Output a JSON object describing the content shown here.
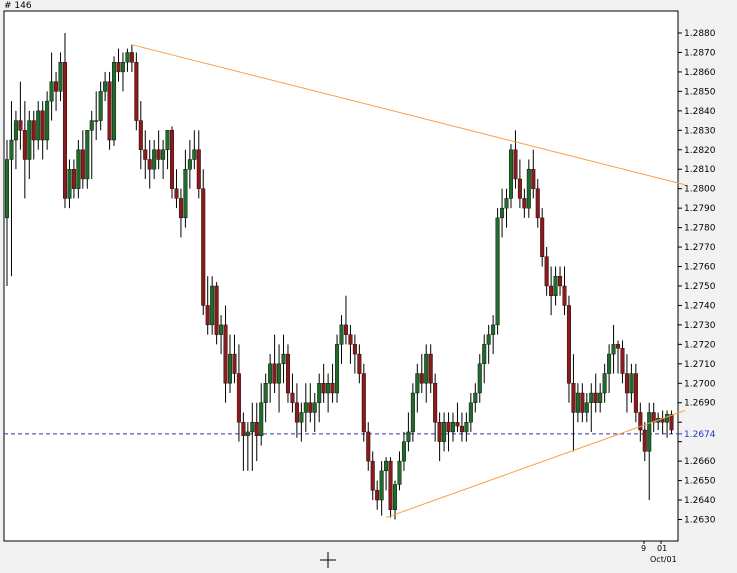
{
  "chart_label": "# 146",
  "chart_data": {
    "type": "candlestick",
    "y_ticks": [
      "1.2880",
      "1.2870",
      "1.2860",
      "1.2850",
      "1.2840",
      "1.2830",
      "1.2820",
      "1.2810",
      "1.2800",
      "1.2790",
      "1.2780",
      "1.2770",
      "1.2760",
      "1.2750",
      "1.2740",
      "1.2730",
      "1.2720",
      "1.2710",
      "1.2700",
      "1.2690",
      "1.2680",
      "1.2670",
      "1.2660",
      "1.2650",
      "1.2640",
      "1.2630"
    ],
    "y_tick_labels_shown": [
      "1.2880",
      "1.2870",
      "1.2860",
      "1.2850",
      "1.2840",
      "1.2830",
      "1.2820",
      "1.2810",
      "1.2800",
      "1.2790",
      "1.2780",
      "1.2770",
      "1.2760",
      "1.2750",
      "1.2740",
      "1.2730",
      "1.2720",
      "1.2710",
      "1.2700",
      "1.2690",
      "1.2660",
      "1.2650",
      "1.2640",
      "1.2630"
    ],
    "ylim": [
      1.2624,
      1.2891
    ],
    "current_price": "1.2674",
    "current_price_value": 1.2674,
    "x_tick_labels": [
      "9",
      "01"
    ],
    "x_date_label": "Oct/01",
    "colors": {
      "bull": "#1e6b2a",
      "bear": "#8b1a1a",
      "wick": "#000000",
      "trendline": "#f5a04a",
      "current_line": "#3333aa",
      "current_label": "#2233cc",
      "plot_bg": "#ffffff",
      "page_bg": "#f2f2f2"
    },
    "trendlines": [
      {
        "from_index": 28,
        "from_price": 1.2874,
        "to_index": 152,
        "to_price": 1.2802
      },
      {
        "from_index": 85,
        "from_price": 1.2631,
        "to_index": 152,
        "to_price": 1.2686
      }
    ],
    "candles": [
      [
        1.2785,
        1.2825,
        1.275,
        1.2815
      ],
      [
        1.2815,
        1.2845,
        1.2755,
        1.2825
      ],
      [
        1.2825,
        1.284,
        1.281,
        1.2835
      ],
      [
        1.2835,
        1.2855,
        1.282,
        1.283
      ],
      [
        1.283,
        1.2845,
        1.2795,
        1.2815
      ],
      [
        1.2815,
        1.284,
        1.2805,
        1.2835
      ],
      [
        1.2835,
        1.284,
        1.2815,
        1.2825
      ],
      [
        1.2825,
        1.2845,
        1.282,
        1.284
      ],
      [
        1.284,
        1.2845,
        1.2815,
        1.2825
      ],
      [
        1.2825,
        1.285,
        1.282,
        1.2845
      ],
      [
        1.2845,
        1.287,
        1.2835,
        1.2855
      ],
      [
        1.2855,
        1.286,
        1.284,
        1.285
      ],
      [
        1.285,
        1.287,
        1.2845,
        1.2865
      ],
      [
        1.2865,
        1.288,
        1.279,
        1.2795
      ],
      [
        1.2795,
        1.2815,
        1.279,
        1.281
      ],
      [
        1.281,
        1.2815,
        1.2795,
        1.28
      ],
      [
        1.28,
        1.2825,
        1.2795,
        1.282
      ],
      [
        1.282,
        1.283,
        1.28,
        1.2805
      ],
      [
        1.2805,
        1.283,
        1.28,
        1.283
      ],
      [
        1.283,
        1.284,
        1.2805,
        1.2835
      ],
      [
        1.2835,
        1.285,
        1.2825,
        1.2835
      ],
      [
        1.2835,
        1.2855,
        1.283,
        1.285
      ],
      [
        1.285,
        1.286,
        1.2845,
        1.2855
      ],
      [
        1.2855,
        1.286,
        1.282,
        1.2825
      ],
      [
        1.2825,
        1.2868,
        1.2822,
        1.2865
      ],
      [
        1.2865,
        1.2872,
        1.2855,
        1.286
      ],
      [
        1.286,
        1.287,
        1.285,
        1.2865
      ],
      [
        1.2865,
        1.2872,
        1.286,
        1.287
      ],
      [
        1.287,
        1.2874,
        1.286,
        1.2865
      ],
      [
        1.2865,
        1.287,
        1.283,
        1.2835
      ],
      [
        1.2835,
        1.2845,
        1.281,
        1.282
      ],
      [
        1.282,
        1.283,
        1.2805,
        1.2815
      ],
      [
        1.2815,
        1.2825,
        1.28,
        1.281
      ],
      [
        1.281,
        1.2825,
        1.2805,
        1.282
      ],
      [
        1.282,
        1.283,
        1.281,
        1.2815
      ],
      [
        1.2815,
        1.2825,
        1.2805,
        1.282
      ],
      [
        1.282,
        1.283,
        1.281,
        1.283
      ],
      [
        1.283,
        1.2832,
        1.2795,
        1.28
      ],
      [
        1.28,
        1.281,
        1.279,
        1.2795
      ],
      [
        1.2795,
        1.28,
        1.2775,
        1.2785
      ],
      [
        1.2785,
        1.282,
        1.278,
        1.281
      ],
      [
        1.281,
        1.2825,
        1.28,
        1.2815
      ],
      [
        1.2815,
        1.283,
        1.281,
        1.282
      ],
      [
        1.282,
        1.283,
        1.2795,
        1.28
      ],
      [
        1.28,
        1.281,
        1.2735,
        1.274
      ],
      [
        1.274,
        1.2755,
        1.2725,
        1.273
      ],
      [
        1.273,
        1.2755,
        1.2725,
        1.275
      ],
      [
        1.275,
        1.2752,
        1.272,
        1.2725
      ],
      [
        1.2725,
        1.2735,
        1.2715,
        1.273
      ],
      [
        1.273,
        1.274,
        1.269,
        1.27
      ],
      [
        1.27,
        1.2725,
        1.2695,
        1.2715
      ],
      [
        1.2715,
        1.2725,
        1.27,
        1.2705
      ],
      [
        1.2705,
        1.272,
        1.267,
        1.268
      ],
      [
        1.268,
        1.2685,
        1.2655,
        1.2673
      ],
      [
        1.2673,
        1.268,
        1.2655,
        1.2675
      ],
      [
        1.2675,
        1.269,
        1.2655,
        1.268
      ],
      [
        1.268,
        1.269,
        1.266,
        1.2673
      ],
      [
        1.2673,
        1.27,
        1.2668,
        1.269
      ],
      [
        1.269,
        1.2705,
        1.268,
        1.27
      ],
      [
        1.27,
        1.2715,
        1.269,
        1.271
      ],
      [
        1.271,
        1.2725,
        1.2695,
        1.27
      ],
      [
        1.27,
        1.272,
        1.2685,
        1.271
      ],
      [
        1.271,
        1.2725,
        1.27,
        1.2715
      ],
      [
        1.2715,
        1.272,
        1.269,
        1.2695
      ],
      [
        1.2695,
        1.2705,
        1.2685,
        1.269
      ],
      [
        1.269,
        1.27,
        1.2672,
        1.268
      ],
      [
        1.268,
        1.269,
        1.267,
        1.2685
      ],
      [
        1.2685,
        1.27,
        1.2675,
        1.269
      ],
      [
        1.269,
        1.27,
        1.268,
        1.2685
      ],
      [
        1.2685,
        1.2695,
        1.2675,
        1.269
      ],
      [
        1.269,
        1.2705,
        1.268,
        1.27
      ],
      [
        1.27,
        1.271,
        1.269,
        1.2695
      ],
      [
        1.2695,
        1.2705,
        1.2685,
        1.27
      ],
      [
        1.27,
        1.271,
        1.269,
        1.2695
      ],
      [
        1.2695,
        1.2725,
        1.269,
        1.272
      ],
      [
        1.272,
        1.2735,
        1.271,
        1.273
      ],
      [
        1.273,
        1.2745,
        1.272,
        1.2725
      ],
      [
        1.2725,
        1.273,
        1.271,
        1.272
      ],
      [
        1.272,
        1.2725,
        1.2705,
        1.2715
      ],
      [
        1.2715,
        1.272,
        1.27,
        1.2705
      ],
      [
        1.2705,
        1.271,
        1.267,
        1.2675
      ],
      [
        1.2675,
        1.268,
        1.2655,
        1.266
      ],
      [
        1.266,
        1.2665,
        1.264,
        1.2645
      ],
      [
        1.2645,
        1.265,
        1.2635,
        1.264
      ],
      [
        1.264,
        1.266,
        1.2632,
        1.2655
      ],
      [
        1.2655,
        1.2662,
        1.2645,
        1.266
      ],
      [
        1.266,
        1.2662,
        1.2631,
        1.2635
      ],
      [
        1.2635,
        1.265,
        1.263,
        1.2648
      ],
      [
        1.2648,
        1.2665,
        1.2645,
        1.266
      ],
      [
        1.266,
        1.2675,
        1.2655,
        1.267
      ],
      [
        1.267,
        1.2685,
        1.2665,
        1.2675
      ],
      [
        1.2675,
        1.27,
        1.267,
        1.2695
      ],
      [
        1.2695,
        1.271,
        1.2685,
        1.2705
      ],
      [
        1.2705,
        1.2715,
        1.2695,
        1.27
      ],
      [
        1.27,
        1.272,
        1.269,
        1.2715
      ],
      [
        1.2715,
        1.272,
        1.2695,
        1.27
      ],
      [
        1.27,
        1.2705,
        1.267,
        1.268
      ],
      [
        1.268,
        1.2685,
        1.266,
        1.267
      ],
      [
        1.267,
        1.2685,
        1.2665,
        1.268
      ],
      [
        1.268,
        1.2685,
        1.2665,
        1.2675
      ],
      [
        1.2675,
        1.2685,
        1.267,
        1.268
      ],
      [
        1.268,
        1.269,
        1.2675,
        1.2678
      ],
      [
        1.2678,
        1.2685,
        1.267,
        1.2675
      ],
      [
        1.2675,
        1.2685,
        1.267,
        1.268
      ],
      [
        1.268,
        1.2695,
        1.2675,
        1.269
      ],
      [
        1.269,
        1.27,
        1.2685,
        1.2695
      ],
      [
        1.2695,
        1.2715,
        1.269,
        1.271
      ],
      [
        1.271,
        1.2725,
        1.27,
        1.272
      ],
      [
        1.272,
        1.273,
        1.271,
        1.2725
      ],
      [
        1.2725,
        1.2735,
        1.2715,
        1.273
      ],
      [
        1.273,
        1.279,
        1.2725,
        1.2785
      ],
      [
        1.2785,
        1.28,
        1.2775,
        1.279
      ],
      [
        1.279,
        1.28,
        1.278,
        1.2795
      ],
      [
        1.2795,
        1.2823,
        1.279,
        1.282
      ],
      [
        1.282,
        1.283,
        1.28,
        1.2805
      ],
      [
        1.2805,
        1.2815,
        1.279,
        1.2795
      ],
      [
        1.2795,
        1.28,
        1.2785,
        1.279
      ],
      [
        1.279,
        1.2815,
        1.2785,
        1.281
      ],
      [
        1.281,
        1.282,
        1.2795,
        1.28
      ],
      [
        1.28,
        1.2805,
        1.278,
        1.2785
      ],
      [
        1.2785,
        1.279,
        1.276,
        1.2765
      ],
      [
        1.2765,
        1.277,
        1.2745,
        1.275
      ],
      [
        1.275,
        1.276,
        1.2735,
        1.2745
      ],
      [
        1.2745,
        1.276,
        1.274,
        1.2755
      ],
      [
        1.2755,
        1.276,
        1.2745,
        1.275
      ],
      [
        1.275,
        1.276,
        1.2735,
        1.274
      ],
      [
        1.274,
        1.2745,
        1.269,
        1.27
      ],
      [
        1.27,
        1.2715,
        1.2665,
        1.2685
      ],
      [
        1.2685,
        1.27,
        1.268,
        1.2695
      ],
      [
        1.2695,
        1.27,
        1.268,
        1.2685
      ],
      [
        1.2685,
        1.2695,
        1.268,
        1.269
      ],
      [
        1.269,
        1.27,
        1.2675,
        1.2695
      ],
      [
        1.2695,
        1.2705,
        1.2685,
        1.269
      ],
      [
        1.269,
        1.27,
        1.2685,
        1.2695
      ],
      [
        1.2695,
        1.271,
        1.269,
        1.2705
      ],
      [
        1.2705,
        1.272,
        1.2695,
        1.2715
      ],
      [
        1.2715,
        1.273,
        1.2705,
        1.272
      ],
      [
        1.272,
        1.2722,
        1.2705,
        1.2718
      ],
      [
        1.2718,
        1.2722,
        1.27,
        1.2705
      ],
      [
        1.2705,
        1.2715,
        1.2685,
        1.2695
      ],
      [
        1.2695,
        1.271,
        1.269,
        1.2705
      ],
      [
        1.2705,
        1.271,
        1.268,
        1.2685
      ],
      [
        1.2685,
        1.269,
        1.267,
        1.2676
      ],
      [
        1.2676,
        1.268,
        1.266,
        1.2665
      ],
      [
        1.2665,
        1.269,
        1.264,
        1.2685
      ],
      [
        1.2685,
        1.269,
        1.2675,
        1.268
      ],
      [
        1.268,
        1.2685,
        1.2676,
        1.2682
      ],
      [
        1.2682,
        1.2686,
        1.2674,
        1.268
      ],
      [
        1.268,
        1.2686,
        1.2672,
        1.2684
      ],
      [
        1.2684,
        1.2686,
        1.2674,
        1.2676
      ]
    ]
  }
}
